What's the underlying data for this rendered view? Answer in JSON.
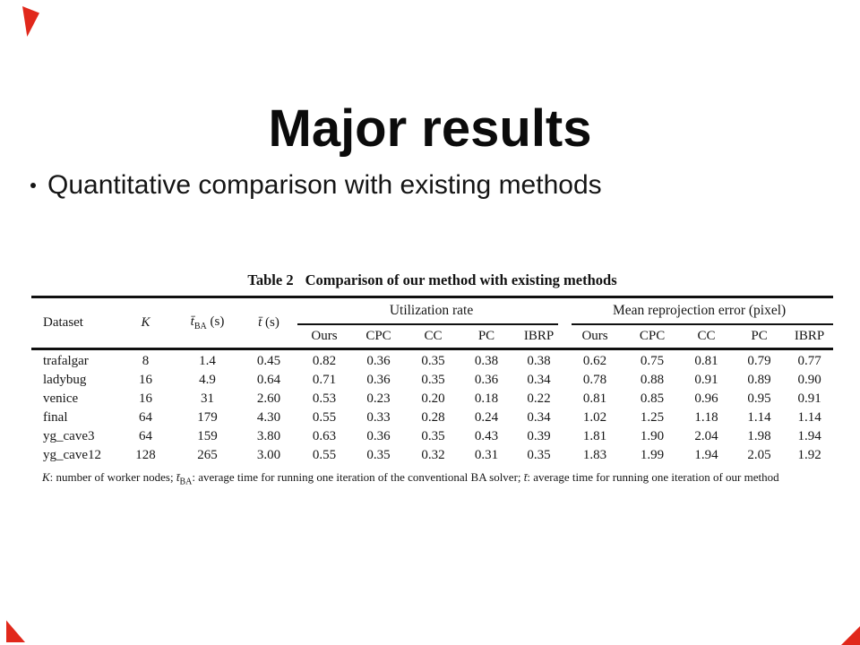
{
  "colors": {
    "background": "#ffffff",
    "text": "#161616",
    "corner_mark_red": "#e1281b"
  },
  "slide": {
    "title": "Major results",
    "bullet": "Quantitative comparison with existing methods"
  },
  "table": {
    "caption_label": "Table 2",
    "caption_text": "Comparison of our method with existing methods",
    "col_headers": {
      "dataset": "Dataset",
      "k": "K",
      "tba_sym": "t̄",
      "tba_sub": "BA",
      "tba_unit": " (s)",
      "t_sym": "t̄",
      "t_unit": " (s)",
      "group1": "Utilization rate",
      "group2": "Mean reprojection error (pixel)",
      "sub_headers": [
        "Ours",
        "CPC",
        "CC",
        "PC",
        "IBRP"
      ]
    },
    "rows": [
      {
        "dataset": "trafalgar",
        "k": "8",
        "tba": "1.4",
        "t": "0.45",
        "util": [
          "0.82",
          "0.36",
          "0.35",
          "0.38",
          "0.38"
        ],
        "err": [
          "0.62",
          "0.75",
          "0.81",
          "0.79",
          "0.77"
        ]
      },
      {
        "dataset": "ladybug",
        "k": "16",
        "tba": "4.9",
        "t": "0.64",
        "util": [
          "0.71",
          "0.36",
          "0.35",
          "0.36",
          "0.34"
        ],
        "err": [
          "0.78",
          "0.88",
          "0.91",
          "0.89",
          "0.90"
        ]
      },
      {
        "dataset": "venice",
        "k": "16",
        "tba": "31",
        "t": "2.60",
        "util": [
          "0.53",
          "0.23",
          "0.20",
          "0.18",
          "0.22"
        ],
        "err": [
          "0.81",
          "0.85",
          "0.96",
          "0.95",
          "0.91"
        ]
      },
      {
        "dataset": "final",
        "k": "64",
        "tba": "179",
        "t": "4.30",
        "util": [
          "0.55",
          "0.33",
          "0.28",
          "0.24",
          "0.34"
        ],
        "err": [
          "1.02",
          "1.25",
          "1.18",
          "1.14",
          "1.14"
        ]
      },
      {
        "dataset": "yg_cave3",
        "k": "64",
        "tba": "159",
        "t": "3.80",
        "util": [
          "0.63",
          "0.36",
          "0.35",
          "0.43",
          "0.39"
        ],
        "err": [
          "1.81",
          "1.90",
          "2.04",
          "1.98",
          "1.94"
        ]
      },
      {
        "dataset": "yg_cave12",
        "k": "128",
        "tba": "265",
        "t": "3.00",
        "util": [
          "0.55",
          "0.35",
          "0.32",
          "0.31",
          "0.35"
        ],
        "err": [
          "1.83",
          "1.99",
          "1.94",
          "2.05",
          "1.92"
        ]
      }
    ],
    "footnote": {
      "k_sym": "K",
      "seg1": ": number of worker nodes; ",
      "t_sym": "t̄",
      "t_sub": "BA",
      "seg2": ": average time for running one iteration of the conventional BA solver; ",
      "t_sym2": "t̄",
      "seg3": ": average time for running one iteration of our method"
    }
  }
}
